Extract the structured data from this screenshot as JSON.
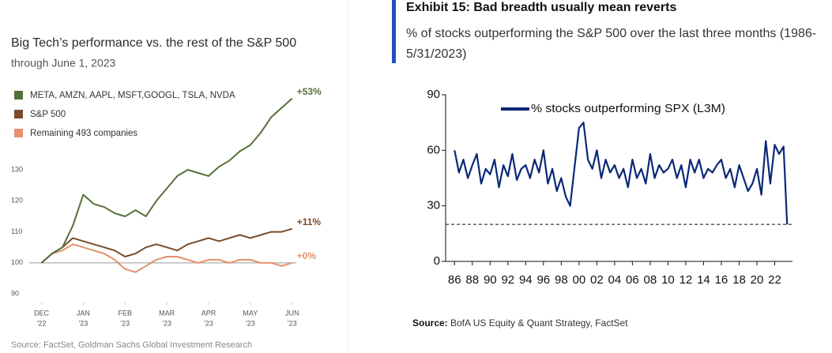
{
  "chart_data": [
    {
      "type": "line",
      "title": "Big Tech’s performance vs. the rest of the S&P 500",
      "subtitle": "through June 1, 2023",
      "source": "Source: FactSet, Goldman Sachs Global Investment Research",
      "x": [
        0,
        0.25,
        0.5,
        0.75,
        1,
        1.25,
        1.5,
        1.75,
        2,
        2.25,
        2.5,
        2.75,
        3,
        3.25,
        3.5,
        3.75,
        4,
        4.25,
        4.5,
        4.75,
        5,
        5.25,
        5.5,
        5.75,
        6
      ],
      "series": [
        {
          "name": "META, AMZN, AAPL, MSFT,GOOGL, TSLA, NVDA",
          "color": "#56703a",
          "values": [
            100,
            103,
            105,
            112,
            122,
            119,
            118,
            116,
            115,
            117,
            115,
            120,
            124,
            128,
            130,
            129,
            128,
            131,
            133,
            136,
            138,
            142,
            147,
            150,
            153
          ]
        },
        {
          "name": "S&P 500",
          "color": "#7a4a2b",
          "values": [
            100,
            103,
            105,
            108,
            107,
            106,
            105,
            104,
            102,
            103,
            105,
            106,
            105,
            104,
            106,
            107,
            108,
            107,
            108,
            109,
            108,
            109,
            110,
            110,
            111
          ]
        },
        {
          "name": "Remaining 493 companies",
          "color": "#e4906c",
          "values": [
            100,
            103,
            104,
            106,
            105,
            104,
            103,
            101,
            98,
            97,
            99,
            101,
            102,
            102,
            101,
            100,
            101,
            101,
            100,
            101,
            101,
            100,
            100,
            99,
            100
          ]
        }
      ],
      "annotations": [
        "+53%",
        "+11%",
        "+0%"
      ],
      "reference_line": 100,
      "xlim": [
        -0.2,
        6.1
      ],
      "xticks": [
        {
          "value": 0,
          "label": [
            "DEC",
            "'22"
          ]
        },
        {
          "value": 1,
          "label": [
            "JAN",
            "'23"
          ]
        },
        {
          "value": 2,
          "label": [
            "FEB",
            "'23"
          ]
        },
        {
          "value": 3,
          "label": [
            "MAR",
            "'23"
          ]
        },
        {
          "value": 4,
          "label": [
            "APR",
            "'23"
          ]
        },
        {
          "value": 5,
          "label": [
            "MAY",
            "'23"
          ]
        },
        {
          "value": 6,
          "label": [
            "JUN",
            "'23"
          ]
        }
      ],
      "ylim": [
        88,
        157
      ],
      "yticks": [
        90,
        100,
        110,
        120,
        130
      ]
    },
    {
      "type": "line",
      "title": "Exhibit 15: Bad breadth usually mean reverts",
      "subtitle": "% of stocks outperforming the S&P 500 over the last three months (1986-5/31/2023)",
      "source_label": "Source:",
      "source": "BofA US Equity & Quant Strategy, FactSet",
      "x": [
        1986,
        1986.5,
        1987,
        1987.5,
        1988,
        1988.5,
        1989,
        1989.5,
        1990,
        1990.5,
        1991,
        1991.5,
        1992,
        1992.5,
        1993,
        1993.5,
        1994,
        1994.5,
        1995,
        1995.5,
        1996,
        1996.5,
        1997,
        1997.5,
        1998,
        1998.5,
        1999,
        2000,
        2000.5,
        2001,
        2001.5,
        2002,
        2002.5,
        2003,
        2003.5,
        2004,
        2004.5,
        2005,
        2005.5,
        2006,
        2006.5,
        2007,
        2007.5,
        2008,
        2008.5,
        2009,
        2009.5,
        2010,
        2010.5,
        2011,
        2011.5,
        2012,
        2012.5,
        2013,
        2013.5,
        2014,
        2014.5,
        2015,
        2015.5,
        2016,
        2016.5,
        2017,
        2017.5,
        2018,
        2018.5,
        2019,
        2019.5,
        2020,
        2020.5,
        2021,
        2021.5,
        2022,
        2022.5,
        2023,
        2023.4
      ],
      "series": [
        {
          "name": "% stocks outperforming SPX (L3M)",
          "color": "#0b2878",
          "values": [
            60,
            48,
            55,
            45,
            52,
            58,
            42,
            50,
            47,
            55,
            40,
            52,
            46,
            58,
            44,
            50,
            52,
            45,
            55,
            48,
            60,
            42,
            50,
            38,
            45,
            35,
            30,
            72,
            75,
            55,
            50,
            60,
            45,
            55,
            48,
            52,
            45,
            50,
            40,
            55,
            45,
            50,
            42,
            58,
            45,
            52,
            48,
            50,
            55,
            45,
            52,
            40,
            55,
            48,
            55,
            45,
            50,
            48,
            52,
            55,
            45,
            50,
            40,
            52,
            45,
            38,
            42,
            50,
            36,
            65,
            42,
            63,
            58,
            62,
            20
          ]
        }
      ],
      "reference_line": 20,
      "xlim": [
        1985,
        2024
      ],
      "xticks": [
        {
          "value": 1986,
          "label": "86"
        },
        {
          "value": 1988,
          "label": "88"
        },
        {
          "value": 1990,
          "label": "90"
        },
        {
          "value": 1992,
          "label": "92"
        },
        {
          "value": 1994,
          "label": "94"
        },
        {
          "value": 1996,
          "label": "96"
        },
        {
          "value": 1998,
          "label": "98"
        },
        {
          "value": 2000,
          "label": "00"
        },
        {
          "value": 2002,
          "label": "02"
        },
        {
          "value": 2004,
          "label": "04"
        },
        {
          "value": 2006,
          "label": "06"
        },
        {
          "value": 2008,
          "label": "08"
        },
        {
          "value": 2010,
          "label": "10"
        },
        {
          "value": 2012,
          "label": "12"
        },
        {
          "value": 2014,
          "label": "14"
        },
        {
          "value": 2016,
          "label": "16"
        },
        {
          "value": 2018,
          "label": "18"
        },
        {
          "value": 2020,
          "label": "20"
        },
        {
          "value": 2022,
          "label": "22"
        }
      ],
      "ylim": [
        0,
        90
      ],
      "yticks": [
        0,
        30,
        60,
        90
      ]
    }
  ]
}
